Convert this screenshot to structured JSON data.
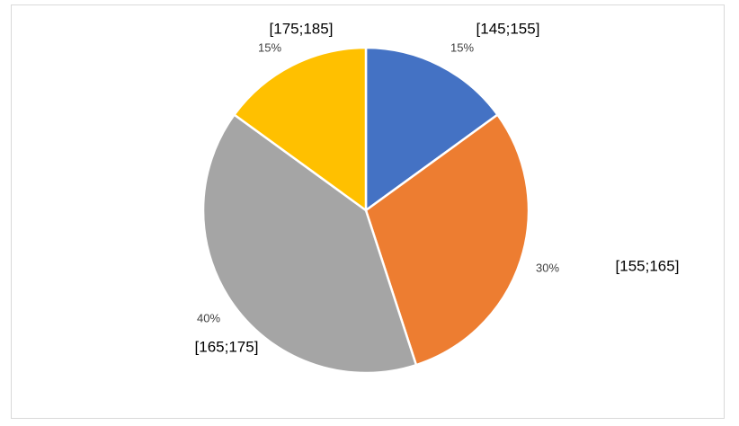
{
  "chart_data": {
    "type": "pie",
    "categories": [
      "[145;155]",
      "[155;165]",
      "[165;175]",
      "[175;185]"
    ],
    "values": [
      15,
      30,
      40,
      15
    ],
    "value_labels": [
      "15%",
      "30%",
      "40%",
      "15%"
    ],
    "colors": [
      "#4472c4",
      "#ed7d31",
      "#a5a5a5",
      "#ffc000"
    ]
  }
}
